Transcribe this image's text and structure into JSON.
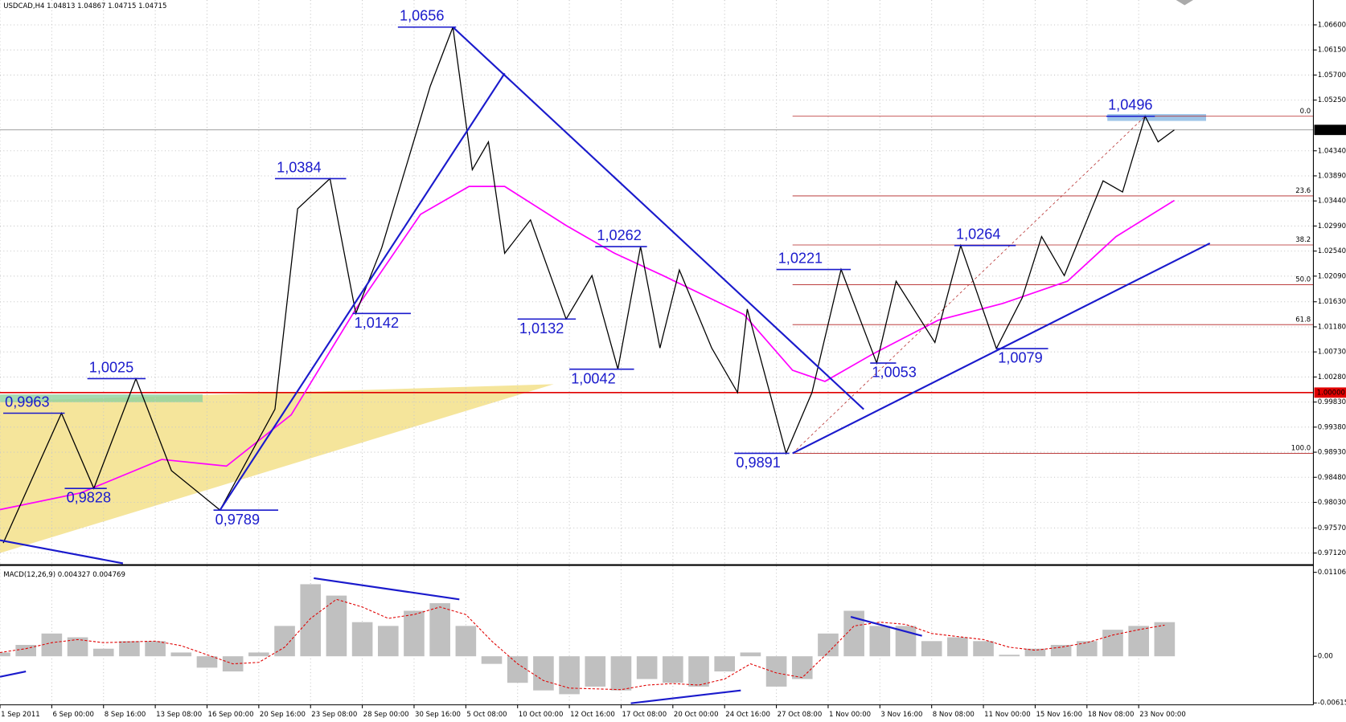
{
  "chart_data": {
    "type": "line",
    "title": "USDCAD,H4  1.04813 1.04867 1.04715 1.04715",
    "grid": true,
    "xlim": [
      0,
      406
    ],
    "ylim": [
      0.96935,
      1.07046
    ],
    "xticks": [
      {
        "value": 0,
        "label": "1 Sep 2011"
      },
      {
        "value": 16,
        "label": "6 Sep 00:00"
      },
      {
        "value": 32,
        "label": "8 Sep 16:00"
      },
      {
        "value": 48,
        "label": "13 Sep 08:00"
      },
      {
        "value": 64,
        "label": "16 Sep 00:00"
      },
      {
        "value": 80,
        "label": "20 Sep 16:00"
      },
      {
        "value": 96,
        "label": "23 Sep 08:00"
      },
      {
        "value": 112,
        "label": "28 Sep 00:00"
      },
      {
        "value": 128,
        "label": "30 Sep 16:00"
      },
      {
        "value": 144,
        "label": "5 Oct 08:00"
      },
      {
        "value": 160,
        "label": "10 Oct 00:00"
      },
      {
        "value": 176,
        "label": "12 Oct 16:00"
      },
      {
        "value": 192,
        "label": "17 Oct 08:00"
      },
      {
        "value": 208,
        "label": "20 Oct 00:00"
      },
      {
        "value": 224,
        "label": "24 Oct 16:00"
      },
      {
        "value": 240,
        "label": "27 Oct 08:00"
      },
      {
        "value": 256,
        "label": "1 Nov 00:00"
      },
      {
        "value": 272,
        "label": "3 Nov 16:00"
      },
      {
        "value": 288,
        "label": "8 Nov 08:00"
      },
      {
        "value": 304,
        "label": "11 Nov 00:00"
      },
      {
        "value": 320,
        "label": "15 Nov 16:00"
      },
      {
        "value": 336,
        "label": "18 Nov 08:00"
      },
      {
        "value": 352,
        "label": "23 Nov 00:00"
      }
    ],
    "yticks": [
      {
        "value": 1.066,
        "label": "1.06600"
      },
      {
        "value": 1.0615,
        "label": "1.06150"
      },
      {
        "value": 1.057,
        "label": "1.05700"
      },
      {
        "value": 1.0525,
        "label": "1.05250"
      },
      {
        "value": 1.0434,
        "label": "1.04340"
      },
      {
        "value": 1.0389,
        "label": "1.03890"
      },
      {
        "value": 1.0344,
        "label": "1.03440"
      },
      {
        "value": 1.0299,
        "label": "1.02990"
      },
      {
        "value": 1.0254,
        "label": "1.02540"
      },
      {
        "value": 1.0209,
        "label": "1.02090"
      },
      {
        "value": 1.0163,
        "label": "1.01630"
      },
      {
        "value": 1.0118,
        "label": "1.01180"
      },
      {
        "value": 1.0073,
        "label": "1.00730"
      },
      {
        "value": 1.0028,
        "label": "1.00280"
      },
      {
        "value": 0.9983,
        "label": "0.99830"
      },
      {
        "value": 0.9938,
        "label": "0.99380"
      },
      {
        "value": 0.9893,
        "label": "0.98930"
      },
      {
        "value": 0.9848,
        "label": "0.98480"
      },
      {
        "value": 0.9803,
        "label": "0.98030"
      },
      {
        "value": 0.9757,
        "label": "0.97570"
      },
      {
        "value": 0.9712,
        "label": "0.97120"
      }
    ],
    "current_price": {
      "value": 1.04715,
      "label": "1.04715",
      "color": "#808080"
    },
    "level": {
      "value": 1.0,
      "label": "1.00000",
      "color": "#e00000"
    },
    "price": {
      "color": "#000000",
      "x": [
        1,
        19,
        29,
        42,
        53,
        68,
        85,
        92,
        102,
        110,
        118,
        133,
        140,
        146,
        151,
        156,
        164,
        175,
        183,
        191,
        198,
        204,
        210,
        220,
        228,
        231,
        243,
        251,
        260,
        271,
        277,
        289,
        297,
        308,
        316,
        322,
        329,
        341,
        347,
        354,
        358,
        363
      ],
      "values": [
        0.973,
        0.9963,
        0.9828,
        1.0025,
        0.986,
        0.9789,
        0.997,
        1.033,
        1.0384,
        1.0142,
        1.026,
        1.055,
        1.0656,
        1.04,
        1.045,
        1.025,
        1.031,
        1.0132,
        1.021,
        1.0042,
        1.0262,
        1.008,
        1.022,
        1.008,
        1.0,
        1.015,
        0.9891,
        1.0,
        1.0221,
        1.0053,
        1.02,
        1.009,
        1.0264,
        1.0079,
        1.017,
        1.028,
        1.021,
        1.038,
        1.036,
        1.0496,
        1.045,
        1.04715
      ]
    },
    "ma": {
      "color": "#ff00ff",
      "x": [
        0,
        25,
        50,
        70,
        90,
        110,
        130,
        145,
        156,
        175,
        190,
        205,
        230,
        245,
        255,
        270,
        290,
        310,
        330,
        345,
        363
      ],
      "values": [
        0.979,
        0.982,
        0.988,
        0.9868,
        0.996,
        1.015,
        1.032,
        1.037,
        1.037,
        1.03,
        1.025,
        1.021,
        1.014,
        1.004,
        1.002,
        1.007,
        1.013,
        1.016,
        1.02,
        1.028,
        1.0345
      ]
    },
    "annotations": [
      {
        "label": "1,0656",
        "value": 1.0656,
        "x": [
          123,
          141
        ]
      },
      {
        "label": "1,0384",
        "value": 1.0384,
        "x": [
          85,
          107
        ]
      },
      {
        "label": "1,0142",
        "value": 1.0142,
        "x": [
          109,
          127
        ]
      },
      {
        "label": "1,0025",
        "value": 1.0025,
        "x": [
          27,
          45
        ]
      },
      {
        "label": "0,9963",
        "value": 0.9963,
        "x": [
          1,
          20
        ]
      },
      {
        "label": "0,9828",
        "value": 0.9828,
        "x": [
          20,
          33
        ]
      },
      {
        "label": "0,9789",
        "value": 0.9789,
        "x": [
          66,
          86
        ]
      },
      {
        "label": "1,0262",
        "value": 1.0262,
        "x": [
          184,
          200
        ]
      },
      {
        "label": "1,0132",
        "value": 1.0132,
        "x": [
          160,
          178
        ]
      },
      {
        "label": "1,0042",
        "value": 1.0042,
        "x": [
          176,
          196
        ]
      },
      {
        "label": "0,9891",
        "value": 0.9891,
        "x": [
          227,
          244
        ]
      },
      {
        "label": "1,0221",
        "value": 1.0221,
        "x": [
          240,
          263
        ]
      },
      {
        "label": "1,0053",
        "value": 1.0053,
        "x": [
          269,
          277
        ]
      },
      {
        "label": "1,0264",
        "value": 1.0264,
        "x": [
          295,
          314
        ]
      },
      {
        "label": "1,0079",
        "value": 1.0079,
        "x": [
          308,
          324
        ]
      },
      {
        "label": "1,0496",
        "value": 1.0496,
        "x": [
          342,
          357
        ]
      }
    ],
    "trendlines": [
      {
        "x": [
          68,
          156
        ],
        "y": [
          0.9789,
          1.0573
        ]
      },
      {
        "x": [
          140,
          267
        ],
        "y": [
          1.0656,
          0.997
        ]
      },
      {
        "x": [
          245,
          374
        ],
        "y": [
          0.9891,
          1.0268
        ]
      },
      {
        "x": [
          0,
          38
        ],
        "y": [
          0.9735,
          0.96935
        ]
      }
    ],
    "fibonacci": {
      "color": "#b22222",
      "x": [
        245,
        354
      ],
      "levels": [
        {
          "label": "0.0",
          "price": 1.0496
        },
        {
          "label": "23.6",
          "price": 1.0353
        },
        {
          "label": "38.2",
          "price": 1.0265
        },
        {
          "label": "50.0",
          "price": 1.01935
        },
        {
          "label": "61.8",
          "price": 1.0122
        },
        {
          "label": "100.0",
          "price": 0.9891
        }
      ]
    },
    "macd": {
      "title": "MACD(12,26,9) 0.004327 0.004769",
      "ylim": [
        -0.0064,
        0.0118
      ],
      "yticks": [
        0.011067,
        {
          "value": 0,
          "label": "0.00"
        },
        -0.00615
      ],
      "histogram_color": "#c0c0c0",
      "signal_color": "#e00000",
      "x": [
        0,
        8,
        16,
        24,
        32,
        40,
        48,
        56,
        64,
        72,
        80,
        88,
        96,
        104,
        112,
        120,
        128,
        136,
        144,
        152,
        160,
        168,
        176,
        184,
        192,
        200,
        208,
        216,
        224,
        232,
        240,
        248,
        256,
        264,
        272,
        280,
        288,
        296,
        304,
        312,
        320,
        328,
        336,
        344,
        352,
        360
      ],
      "histogram": [
        0.0005,
        0.0015,
        0.003,
        0.0025,
        0.001,
        0.002,
        0.002,
        0.0005,
        -0.0015,
        -0.002,
        0.0005,
        0.004,
        0.0095,
        0.008,
        0.0045,
        0.004,
        0.006,
        0.007,
        0.004,
        -0.001,
        -0.0035,
        -0.0045,
        -0.005,
        -0.004,
        -0.0045,
        -0.003,
        -0.0035,
        -0.004,
        -0.002,
        0.0005,
        -0.004,
        -0.003,
        0.003,
        0.006,
        0.004,
        0.004,
        0.002,
        0.0025,
        0.002,
        0.0002,
        0.001,
        0.0015,
        0.002,
        0.0035,
        0.004,
        0.0045
      ],
      "signal": [
        0.0005,
        0.001,
        0.0018,
        0.0022,
        0.0018,
        0.0019,
        0.002,
        0.0014,
        0.0002,
        -0.001,
        -0.0008,
        0.0012,
        0.005,
        0.0075,
        0.0065,
        0.005,
        0.0055,
        0.0065,
        0.0055,
        0.002,
        -0.001,
        -0.0032,
        -0.0042,
        -0.0043,
        -0.0044,
        -0.0038,
        -0.0036,
        -0.0038,
        -0.003,
        -0.001,
        -0.0022,
        -0.0028,
        0.0005,
        0.004,
        0.0045,
        0.0042,
        0.003,
        0.0026,
        0.0022,
        0.0012,
        0.0008,
        0.0012,
        0.0018,
        0.0028,
        0.0035,
        0.0041
      ],
      "trendlines": [
        {
          "x": [
            97,
            142
          ],
          "y": [
            0.0103,
            0.0075
          ]
        },
        {
          "x": [
            263,
            285
          ],
          "y": [
            0.0052,
            0.0027
          ]
        },
        {
          "x": [
            195,
            229
          ],
          "y": [
            -0.0062,
            -0.0045
          ]
        },
        {
          "x": [
            0,
            8
          ],
          "y": [
            -0.0027,
            -0.002
          ]
        }
      ]
    }
  }
}
